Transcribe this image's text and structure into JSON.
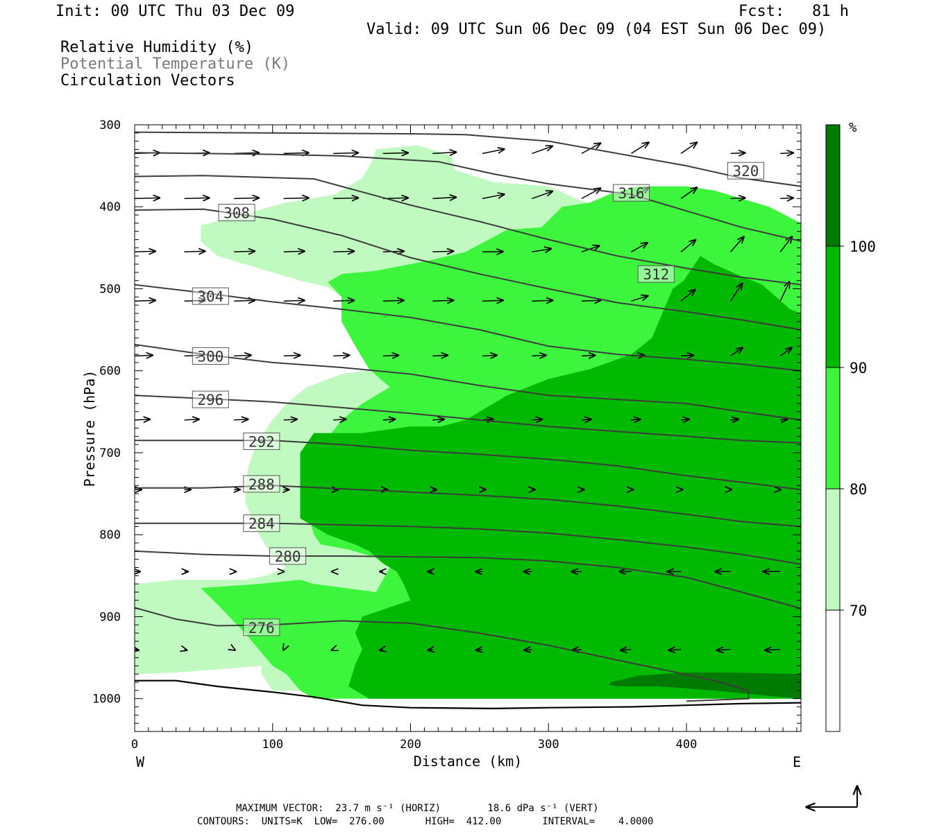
{
  "header": {
    "init": "Init: 00 UTC Thu 03 Dec 09",
    "fcst": "Fcst:   81 h",
    "valid": "Valid: 09 UTC Sun 06 Dec 09 (04 EST Sun 06 Dec 09)",
    "field1": "Relative Humidity (%)",
    "field2": "Potential Temperature (K)",
    "field3": "Circulation Vectors"
  },
  "footer": {
    "max_vector_line": "MAXIMUM VECTOR:  23.7 m s⁻¹ (HORIZ)        18.6 dPa s⁻¹ (VERT)",
    "contours_line": "CONTOURS:  UNITS=K  LOW=  276.00       HIGH=  412.00       INTERVAL=    4.0000"
  },
  "chart_data": {
    "type": "cross-section",
    "xlabel": "Distance (km)",
    "ylabel": "Pressure (hPa)",
    "x_ticks": [
      0,
      100,
      200,
      300,
      400
    ],
    "y_ticks": [
      300,
      400,
      500,
      600,
      700,
      800,
      900,
      1000
    ],
    "xlim": [
      0,
      483
    ],
    "ylim": [
      1040,
      300
    ],
    "west_label": "W",
    "east_label": "E",
    "colorbar": {
      "unit": "%",
      "levels": [
        70,
        80,
        90,
        100
      ],
      "colors": [
        "#ffffff",
        "#c0fac0",
        "#3ef53e",
        "#00b900",
        "#007a00"
      ]
    },
    "rh_shading": [
      {
        "level": 70,
        "color": "#c0fac0",
        "polygon": [
          [
            48,
            423
          ],
          [
            110,
            395
          ],
          [
            145,
            385
          ],
          [
            165,
            365
          ],
          [
            172,
            345
          ],
          [
            175,
            330
          ],
          [
            205,
            325
          ],
          [
            230,
            338
          ],
          [
            232,
            355
          ],
          [
            260,
            370
          ],
          [
            300,
            375
          ],
          [
            320,
            390
          ],
          [
            335,
            400
          ],
          [
            348,
            410
          ],
          [
            361,
            420
          ],
          [
            375,
            430
          ],
          [
            400,
            430
          ],
          [
            430,
            440
          ],
          [
            483,
            450
          ],
          [
            483,
            1000
          ],
          [
            100,
            990
          ],
          [
            92,
            970
          ],
          [
            92,
            960
          ],
          [
            30,
            968
          ],
          [
            0,
            970
          ],
          [
            0,
            860
          ],
          [
            30,
            855
          ],
          [
            80,
            855
          ],
          [
            95,
            850
          ],
          [
            110,
            840
          ],
          [
            100,
            825
          ],
          [
            90,
            800
          ],
          [
            80,
            760
          ],
          [
            82,
            720
          ],
          [
            88,
            690
          ],
          [
            100,
            660
          ],
          [
            110,
            640
          ],
          [
            125,
            620
          ],
          [
            150,
            604
          ],
          [
            175,
            598
          ],
          [
            160,
            565
          ],
          [
            150,
            510
          ],
          [
            140,
            498
          ],
          [
            120,
            490
          ],
          [
            100,
            480
          ],
          [
            80,
            470
          ],
          [
            60,
            460
          ],
          [
            48,
            442
          ]
        ]
      },
      {
        "level": 80,
        "color": "#3ef53e",
        "polygon": [
          [
            140,
            492
          ],
          [
            150,
            482
          ],
          [
            175,
            478
          ],
          [
            215,
            465
          ],
          [
            240,
            455
          ],
          [
            270,
            428
          ],
          [
            295,
            425
          ],
          [
            310,
            400
          ],
          [
            330,
            395
          ],
          [
            348,
            382
          ],
          [
            365,
            375
          ],
          [
            400,
            375
          ],
          [
            420,
            380
          ],
          [
            440,
            390
          ],
          [
            460,
            400
          ],
          [
            483,
            420
          ],
          [
            483,
            1000
          ],
          [
            130,
            1000
          ],
          [
            120,
            990
          ],
          [
            110,
            970
          ],
          [
            100,
            960
          ],
          [
            90,
            940
          ],
          [
            80,
            920
          ],
          [
            60,
            885
          ],
          [
            48,
            865
          ],
          [
            90,
            860
          ],
          [
            120,
            855
          ],
          [
            130,
            860
          ],
          [
            175,
            870
          ],
          [
            185,
            840
          ],
          [
            175,
            828
          ],
          [
            155,
            818
          ],
          [
            135,
            812
          ],
          [
            130,
            800
          ],
          [
            125,
            770
          ],
          [
            120,
            742
          ],
          [
            125,
            708
          ],
          [
            140,
            682
          ],
          [
            150,
            660
          ],
          [
            165,
            640
          ],
          [
            185,
            620
          ],
          [
            170,
            598
          ],
          [
            160,
            570
          ],
          [
            150,
            540
          ],
          [
            150,
            510
          ]
        ]
      },
      {
        "level": 90,
        "color": "#00b900",
        "polygon": [
          [
            120,
            700
          ],
          [
            130,
            676
          ],
          [
            165,
            676
          ],
          [
            200,
            668
          ],
          [
            222,
            668
          ],
          [
            240,
            660
          ],
          [
            270,
            630
          ],
          [
            300,
            610
          ],
          [
            330,
            598
          ],
          [
            360,
            580
          ],
          [
            375,
            560
          ],
          [
            390,
            500
          ],
          [
            398,
            490
          ],
          [
            410,
            460
          ],
          [
            420,
            470
          ],
          [
            440,
            485
          ],
          [
            455,
            495
          ],
          [
            475,
            525
          ],
          [
            483,
            530
          ],
          [
            483,
            1000
          ],
          [
            170,
            1000
          ],
          [
            155,
            985
          ],
          [
            160,
            958
          ],
          [
            165,
            940
          ],
          [
            160,
            920
          ],
          [
            165,
            900
          ],
          [
            200,
            880
          ],
          [
            195,
            860
          ],
          [
            190,
            845
          ],
          [
            180,
            835
          ],
          [
            170,
            820
          ],
          [
            160,
            812
          ],
          [
            140,
            800
          ],
          [
            130,
            790
          ],
          [
            120,
            780
          ],
          [
            120,
            760
          ],
          [
            120,
            730
          ]
        ]
      },
      {
        "level": 100,
        "color": "#007a00",
        "polygon": [
          [
            345,
            980
          ],
          [
            365,
            972
          ],
          [
            400,
            968
          ],
          [
            430,
            968
          ],
          [
            483,
            970
          ],
          [
            483,
            1000
          ],
          [
            450,
            995
          ],
          [
            420,
            990
          ],
          [
            380,
            985
          ],
          [
            350,
            985
          ],
          [
            344,
            983
          ]
        ]
      }
    ],
    "theta_contours": [
      {
        "value": 276,
        "label_x": 92,
        "label_y": 913,
        "points": [
          [
            0,
            889
          ],
          [
            30,
            903
          ],
          [
            60,
            911
          ],
          [
            100,
            910
          ],
          [
            150,
            905
          ],
          [
            200,
            908
          ],
          [
            250,
            920
          ],
          [
            300,
            935
          ],
          [
            350,
            953
          ],
          [
            390,
            967
          ],
          [
            420,
            978
          ],
          [
            445,
            990
          ],
          [
            445,
            1000
          ],
          [
            400,
            1003
          ]
        ]
      },
      {
        "value": 280,
        "label_x": 111,
        "label_y": 826,
        "points": [
          [
            0,
            820
          ],
          [
            50,
            824
          ],
          [
            100,
            826
          ],
          [
            150,
            826
          ],
          [
            200,
            827
          ],
          [
            250,
            828
          ],
          [
            300,
            832
          ],
          [
            350,
            840
          ],
          [
            400,
            852
          ],
          [
            440,
            870
          ],
          [
            483,
            890
          ]
        ]
      },
      {
        "value": 284,
        "label_x": 92,
        "label_y": 786,
        "points": [
          [
            0,
            786
          ],
          [
            50,
            786
          ],
          [
            100,
            786
          ],
          [
            150,
            788
          ],
          [
            200,
            790
          ],
          [
            250,
            793
          ],
          [
            300,
            798
          ],
          [
            350,
            806
          ],
          [
            400,
            815
          ],
          [
            440,
            824
          ],
          [
            483,
            836
          ]
        ]
      },
      {
        "value": 288,
        "label_x": 92,
        "label_y": 738,
        "points": [
          [
            0,
            743
          ],
          [
            50,
            743
          ],
          [
            100,
            740
          ],
          [
            150,
            744
          ],
          [
            200,
            748
          ],
          [
            250,
            752
          ],
          [
            300,
            757
          ],
          [
            350,
            765
          ],
          [
            400,
            775
          ],
          [
            440,
            784
          ],
          [
            483,
            790
          ]
        ]
      },
      {
        "value": 292,
        "label_x": 92,
        "label_y": 686,
        "points": [
          [
            0,
            685
          ],
          [
            50,
            685
          ],
          [
            100,
            685
          ],
          [
            150,
            690
          ],
          [
            200,
            697
          ],
          [
            250,
            702
          ],
          [
            300,
            708
          ],
          [
            350,
            716
          ],
          [
            400,
            728
          ],
          [
            440,
            736
          ],
          [
            483,
            745
          ]
        ]
      },
      {
        "value": 296,
        "label_x": 55,
        "label_y": 635,
        "points": [
          [
            0,
            630
          ],
          [
            50,
            634
          ],
          [
            100,
            638
          ],
          [
            150,
            645
          ],
          [
            200,
            652
          ],
          [
            250,
            660
          ],
          [
            300,
            668
          ],
          [
            350,
            674
          ],
          [
            400,
            680
          ],
          [
            440,
            685
          ],
          [
            483,
            688
          ]
        ]
      },
      {
        "value": 300,
        "label_x": 55,
        "label_y": 582,
        "points": [
          [
            0,
            568
          ],
          [
            50,
            580
          ],
          [
            100,
            590
          ],
          [
            150,
            596
          ],
          [
            200,
            604
          ],
          [
            250,
            618
          ],
          [
            300,
            630
          ],
          [
            350,
            635
          ],
          [
            400,
            640
          ],
          [
            440,
            650
          ],
          [
            483,
            660
          ]
        ]
      },
      {
        "value": 304,
        "label_x": 55,
        "label_y": 509,
        "points": [
          [
            0,
            495
          ],
          [
            50,
            505
          ],
          [
            100,
            516
          ],
          [
            150,
            525
          ],
          [
            200,
            535
          ],
          [
            250,
            550
          ],
          [
            300,
            570
          ],
          [
            350,
            580
          ],
          [
            400,
            586
          ],
          [
            440,
            592
          ],
          [
            483,
            600
          ]
        ]
      },
      {
        "value": 308,
        "label_x": 74,
        "label_y": 407,
        "points": [
          [
            0,
            404
          ],
          [
            50,
            403
          ],
          [
            100,
            415
          ],
          [
            150,
            435
          ],
          [
            200,
            462
          ],
          [
            250,
            482
          ],
          [
            300,
            500
          ],
          [
            350,
            517
          ],
          [
            400,
            528
          ],
          [
            440,
            538
          ],
          [
            483,
            550
          ]
        ]
      },
      {
        "value": 312,
        "label_x": 378,
        "label_y": 482,
        "points": [
          [
            0,
            363
          ],
          [
            50,
            362
          ],
          [
            130,
            366
          ],
          [
            200,
            398
          ],
          [
            250,
            418
          ],
          [
            300,
            440
          ],
          [
            350,
            460
          ],
          [
            400,
            475
          ],
          [
            440,
            486
          ],
          [
            483,
            495
          ]
        ]
      },
      {
        "value": 316,
        "label_x": 360,
        "label_y": 383,
        "points": [
          [
            0,
            334
          ],
          [
            100,
            336
          ],
          [
            150,
            338
          ],
          [
            220,
            345
          ],
          [
            260,
            360
          ],
          [
            300,
            372
          ],
          [
            360,
            385
          ],
          [
            400,
            405
          ],
          [
            440,
            425
          ],
          [
            483,
            442
          ]
        ]
      },
      {
        "value": 320,
        "label_x": 443,
        "label_y": 356,
        "points": [
          [
            0,
            309
          ],
          [
            100,
            310
          ],
          [
            200,
            311
          ],
          [
            240,
            312
          ],
          [
            300,
            320
          ],
          [
            360,
            338
          ],
          [
            400,
            350
          ],
          [
            440,
            365
          ],
          [
            483,
            375
          ]
        ]
      }
    ]
  }
}
